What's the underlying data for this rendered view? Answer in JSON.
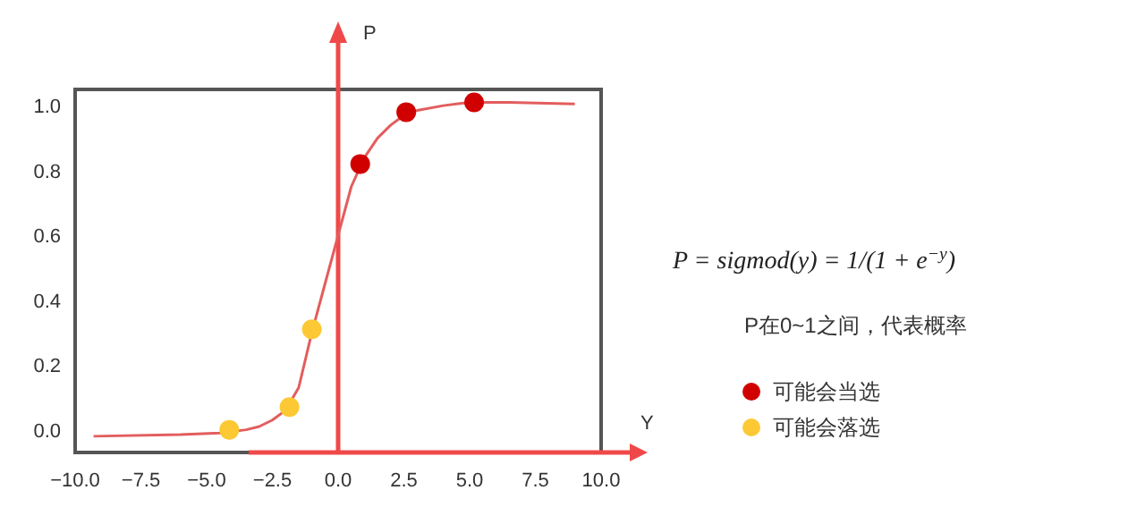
{
  "chart_data": {
    "type": "scatter",
    "xlabel": "Y",
    "ylabel": "P",
    "xlim": [
      -10,
      10
    ],
    "ylim": [
      -0.07,
      1.05
    ],
    "xticks": [
      {
        "value": -10,
        "label": "−10.0"
      },
      {
        "value": -7.5,
        "label": "−7.5"
      },
      {
        "value": -5,
        "label": "−5.0"
      },
      {
        "value": -2.5,
        "label": "−2.5"
      },
      {
        "value": 0,
        "label": "0.0"
      },
      {
        "value": 2.5,
        "label": "2.5"
      },
      {
        "value": 5,
        "label": "5.0"
      },
      {
        "value": 7.5,
        "label": "7.5"
      },
      {
        "value": 10,
        "label": "10.0"
      }
    ],
    "yticks": [
      {
        "value": 0,
        "label": "0.0"
      },
      {
        "value": 0.2,
        "label": "0.2"
      },
      {
        "value": 0.4,
        "label": "0.4"
      },
      {
        "value": 0.6,
        "label": "0.6"
      },
      {
        "value": 0.8,
        "label": "0.8"
      },
      {
        "value": 1,
        "label": "1.0"
      }
    ],
    "grid": false,
    "legend": "right",
    "marker": "circle",
    "series": [
      {
        "type": "line",
        "marker": "none",
        "color": "#e35d5d",
        "x": [
          -9.3,
          -6,
          -4.5,
          -3.5,
          -3,
          -2.5,
          -2,
          -1.5,
          -1,
          -0.5,
          0,
          0.5,
          1,
          1.5,
          2,
          2.5,
          3,
          4,
          5,
          6.5,
          9
        ],
        "values": [
          -0.02,
          -0.015,
          -0.01,
          0.0,
          0.01,
          0.03,
          0.06,
          0.13,
          0.3,
          0.45,
          0.6,
          0.75,
          0.84,
          0.9,
          0.94,
          0.97,
          0.985,
          1.0,
          1.01,
          1.01,
          1.005
        ]
      },
      {
        "name": "可能会当选",
        "color": "#d10000",
        "x": [
          0.84,
          2.59,
          5.17
        ],
        "values": [
          0.82,
          0.98,
          1.01
        ]
      },
      {
        "name": "可能会落选",
        "color": "#fcc935",
        "x": [
          -4.14,
          -1.85,
          -1.0
        ],
        "values": [
          0.0,
          0.07,
          0.31
        ]
      }
    ],
    "ref_lines": [
      {
        "axis": "x",
        "value": 0,
        "color": "#f04848"
      }
    ],
    "annotations": [
      "P = sigmod(y) = 1/(1 + e$^{−y}$)",
      "P在0~1之间，代表概率"
    ]
  }
}
